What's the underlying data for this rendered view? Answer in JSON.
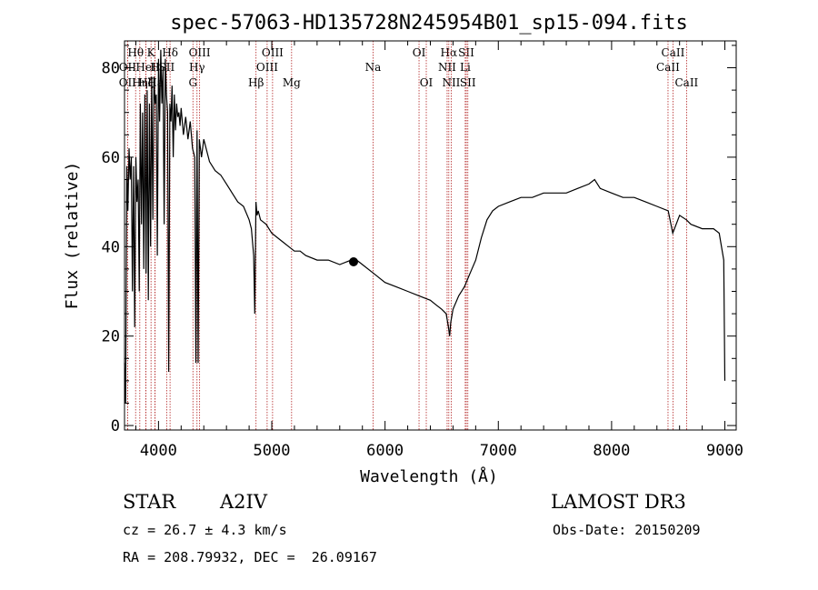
{
  "chart_data": {
    "type": "line",
    "title": "spec-57063-HD135728N245954B01_sp15-094.fits",
    "xlabel": "Wavelength (Å)",
    "ylabel": "Flux (relative)",
    "xlim": [
      3700,
      9100
    ],
    "ylim": [
      -1,
      86
    ],
    "grid": false,
    "x_ticks": [
      4000,
      5000,
      6000,
      7000,
      8000,
      9000
    ],
    "y_ticks": [
      0,
      20,
      40,
      60,
      80
    ],
    "series": [
      {
        "color": "#000000",
        "x": [
          3700,
          3710,
          3720,
          3730,
          3740,
          3750,
          3760,
          3770,
          3780,
          3790,
          3800,
          3810,
          3820,
          3830,
          3840,
          3850,
          3860,
          3870,
          3880,
          3890,
          3900,
          3910,
          3920,
          3930,
          3940,
          3950,
          3960,
          3970,
          3980,
          3990,
          4000,
          4010,
          4020,
          4030,
          4040,
          4050,
          4060,
          4070,
          4080,
          4090,
          4100,
          4110,
          4120,
          4130,
          4140,
          4150,
          4160,
          4170,
          4180,
          4190,
          4200,
          4220,
          4240,
          4260,
          4280,
          4300,
          4320,
          4330,
          4340,
          4350,
          4360,
          4380,
          4400,
          4450,
          4500,
          4550,
          4600,
          4650,
          4700,
          4750,
          4800,
          4820,
          4840,
          4850,
          4860,
          4870,
          4880,
          4900,
          4950,
          5000,
          5050,
          5100,
          5150,
          5200,
          5250,
          5300,
          5400,
          5500,
          5600,
          5700,
          5750,
          5800,
          5900,
          6000,
          6100,
          6200,
          6300,
          6400,
          6450,
          6500,
          6540,
          6560,
          6570,
          6580,
          6600,
          6650,
          6700,
          6750,
          6800,
          6850,
          6900,
          6950,
          7000,
          7100,
          7200,
          7300,
          7400,
          7500,
          7600,
          7700,
          7800,
          7850,
          7900,
          8000,
          8100,
          8200,
          8300,
          8400,
          8500,
          8540,
          8600,
          8660,
          8700,
          8800,
          8900,
          8950,
          8990,
          9000
        ],
        "values": [
          14,
          5,
          58,
          48,
          62,
          55,
          60,
          30,
          58,
          22,
          60,
          50,
          55,
          30,
          72,
          45,
          70,
          35,
          74,
          34,
          75,
          28,
          72,
          40,
          78,
          46,
          78,
          72,
          74,
          38,
          82,
          68,
          84,
          72,
          80,
          45,
          82,
          74,
          70,
          12,
          72,
          68,
          76,
          60,
          74,
          66,
          72,
          69,
          70,
          67,
          71,
          65,
          69,
          64,
          68,
          62,
          60,
          14,
          66,
          14,
          64,
          60,
          64,
          59,
          57,
          56,
          54,
          52,
          50,
          49,
          46,
          44,
          38,
          25,
          50,
          47,
          48,
          46,
          45,
          43,
          42,
          41,
          40,
          39,
          39,
          38,
          37,
          37,
          36,
          37,
          37,
          36,
          34,
          32,
          31,
          30,
          29,
          28,
          27,
          26,
          25,
          22,
          20,
          23,
          26,
          29,
          31,
          34,
          37,
          42,
          46,
          48,
          49,
          50,
          51,
          51,
          52,
          52,
          52,
          53,
          54,
          55,
          53,
          52,
          51,
          51,
          50,
          49,
          48,
          43,
          47,
          46,
          45,
          44,
          44,
          43,
          37,
          10
        ]
      }
    ],
    "line_markers": [
      {
        "label": "Hθ",
        "x": 3798,
        "row": 1
      },
      {
        "label": "OII",
        "x": 3727,
        "row": 2
      },
      {
        "label": "OII",
        "x": 3727,
        "row": 3
      },
      {
        "label": "Hη",
        "x": 3835,
        "row": 3
      },
      {
        "label": "Hζ",
        "x": 3889,
        "row": 3
      },
      {
        "label": "HeI",
        "x": 3889,
        "row": 2
      },
      {
        "label": "K",
        "x": 3934,
        "row": 1
      },
      {
        "label": "H",
        "x": 3969,
        "row": 2
      },
      {
        "label": "Hε",
        "x": 3970,
        "row": 3
      },
      {
        "label": "SII",
        "x": 4072,
        "row": 2
      },
      {
        "label": "Hδ",
        "x": 4102,
        "row": 1
      },
      {
        "label": "OIII",
        "x": 4363,
        "row": 1
      },
      {
        "label": "Hγ",
        "x": 4340,
        "row": 2
      },
      {
        "label": "G",
        "x": 4304,
        "row": 3
      },
      {
        "label": "Hβ",
        "x": 4861,
        "row": 3
      },
      {
        "label": "OIII",
        "x": 5007,
        "row": 1
      },
      {
        "label": "OIII",
        "x": 4959,
        "row": 2
      },
      {
        "label": "Mg",
        "x": 5175,
        "row": 3
      },
      {
        "label": "Na",
        "x": 5894,
        "row": 2
      },
      {
        "label": "OI",
        "x": 6300,
        "row": 1
      },
      {
        "label": "OI",
        "x": 6364,
        "row": 3
      },
      {
        "label": "Hα",
        "x": 6563,
        "row": 1
      },
      {
        "label": "NII",
        "x": 6548,
        "row": 2
      },
      {
        "label": "NII",
        "x": 6584,
        "row": 3
      },
      {
        "label": "SII",
        "x": 6717,
        "row": 1
      },
      {
        "label": "Li",
        "x": 6708,
        "row": 2
      },
      {
        "label": "SII",
        "x": 6731,
        "row": 3
      },
      {
        "label": "CaII",
        "x": 8542,
        "row": 1
      },
      {
        "label": "CaII",
        "x": 8498,
        "row": 2
      },
      {
        "label": "CaII",
        "x": 8662,
        "row": 3
      }
    ]
  },
  "info": {
    "object_type": "STAR",
    "subclass": "A2IV",
    "survey": "LAMOST DR3",
    "redshift": "cz = 26.7 ± 4.3 km/s",
    "obs_date": "Obs-Date: 20150209",
    "coords": "RA = 208.79932, DEC =  26.09167"
  }
}
